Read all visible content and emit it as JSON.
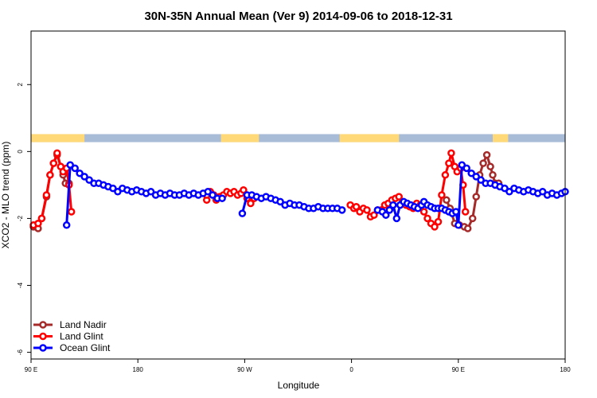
{
  "chart_data": {
    "type": "line",
    "title": "30N-35N Annual Mean (Ver 9)   2014-09-06 to 2018-12-31",
    "xlabel": "Longitude",
    "ylabel": "XCO2 - MLO trend (ppm)",
    "xlim": [
      90,
      540
    ],
    "ylim": [
      -6.2,
      3.6
    ],
    "x_ticks": [
      {
        "value": 90,
        "label": "90 E"
      },
      {
        "value": 180,
        "label": "180"
      },
      {
        "value": 270,
        "label": "90 W"
      },
      {
        "value": 360,
        "label": "0"
      },
      {
        "value": 450,
        "label": "90 E"
      },
      {
        "value": 540,
        "label": "180"
      }
    ],
    "y_ticks": [
      {
        "value": 2,
        "label": "2"
      },
      {
        "value": 0,
        "label": "0"
      },
      {
        "value": -2,
        "label": "-2"
      },
      {
        "value": -4,
        "label": "-4"
      },
      {
        "value": -6,
        "label": "-6"
      }
    ],
    "grid": false,
    "legend_position": "bottom-left",
    "land_ocean_strip": {
      "y_range": [
        0.28,
        0.52
      ],
      "ocean_color": "#a8bcd8",
      "land_color": "#ffd878",
      "land_segments": [
        [
          90,
          135
        ],
        [
          250,
          282
        ],
        [
          350,
          400
        ],
        [
          479,
          492
        ]
      ]
    },
    "series": [
      {
        "name": "Land Nadir",
        "color": "#a52a2a",
        "segments": [
          [
            [
              92,
              -2.25
            ],
            [
              96,
              -2.3
            ],
            [
              99,
              -2.0
            ],
            [
              103,
              -1.35
            ],
            [
              106,
              -0.7
            ],
            [
              109,
              -0.35
            ],
            [
              112,
              -0.1
            ],
            [
              115,
              -0.45
            ],
            [
              117,
              -0.7
            ],
            [
              119,
              -0.95
            ],
            [
              122,
              -0.95
            ]
          ],
          [
            [
              440,
              -1.45
            ],
            [
              443,
              -1.7
            ],
            [
              447,
              -2.15
            ],
            [
              451,
              -2.2
            ],
            [
              455,
              -2.25
            ],
            [
              458,
              -2.3
            ],
            [
              462,
              -2.0
            ],
            [
              465,
              -1.35
            ],
            [
              468,
              -0.7
            ],
            [
              471,
              -0.35
            ],
            [
              474,
              -0.1
            ],
            [
              477,
              -0.45
            ],
            [
              479,
              -0.7
            ],
            [
              481,
              -0.95
            ],
            [
              484,
              -0.95
            ]
          ]
        ]
      },
      {
        "name": "Land Glint",
        "color": "#ff0000",
        "segments": [
          [
            [
              92,
              -2.2
            ],
            [
              96,
              -2.15
            ],
            [
              99,
              -2.0
            ],
            [
              103,
              -1.3
            ],
            [
              106,
              -0.7
            ],
            [
              109,
              -0.35
            ],
            [
              112,
              -0.05
            ],
            [
              115,
              -0.45
            ],
            [
              117,
              -0.6
            ],
            [
              120,
              -0.5
            ],
            [
              122,
              -1.0
            ],
            [
              124,
              -1.8
            ]
          ],
          [
            [
              238,
              -1.45
            ],
            [
              238,
              -1.3
            ],
            [
              241,
              -1.2
            ],
            [
              244,
              -1.3
            ],
            [
              246,
              -1.45
            ],
            [
              249,
              -1.35
            ],
            [
              252,
              -1.3
            ],
            [
              255,
              -1.2
            ],
            [
              258,
              -1.25
            ],
            [
              261,
              -1.2
            ],
            [
              264,
              -1.3
            ],
            [
              267,
              -1.25
            ],
            [
              269,
              -1.15
            ],
            [
              272,
              -1.4
            ],
            [
              275,
              -1.55
            ],
            [
              278,
              -1.4
            ]
          ],
          [
            [
              359,
              -1.6
            ],
            [
              362,
              -1.7
            ],
            [
              364,
              -1.65
            ],
            [
              367,
              -1.8
            ],
            [
              370,
              -1.7
            ],
            [
              373,
              -1.75
            ],
            [
              376,
              -1.95
            ],
            [
              379,
              -1.9
            ],
            [
              382,
              -1.75
            ],
            [
              385,
              -1.75
            ],
            [
              388,
              -1.6
            ],
            [
              391,
              -1.55
            ],
            [
              394,
              -1.45
            ],
            [
              397,
              -1.4
            ],
            [
              400,
              -1.35
            ],
            [
              403,
              -1.5
            ],
            [
              406,
              -1.6
            ],
            [
              409,
              -1.65
            ],
            [
              412,
              -1.7
            ],
            [
              415,
              -1.55
            ],
            [
              418,
              -1.6
            ],
            [
              421,
              -1.8
            ],
            [
              424,
              -2.0
            ],
            [
              427,
              -2.15
            ],
            [
              430,
              -2.25
            ],
            [
              433,
              -2.1
            ],
            [
              436,
              -1.3
            ],
            [
              439,
              -0.7
            ],
            [
              442,
              -0.35
            ],
            [
              444,
              -0.05
            ],
            [
              447,
              -0.45
            ],
            [
              449,
              -0.6
            ],
            [
              452,
              -0.5
            ],
            [
              454,
              -1.0
            ],
            [
              456,
              -1.8
            ]
          ]
        ]
      },
      {
        "name": "Ocean Glint",
        "color": "#0000ff",
        "segments": [
          [
            [
              120,
              -2.2
            ],
            [
              123,
              -0.4
            ],
            [
              127,
              -0.5
            ],
            [
              131,
              -0.65
            ],
            [
              135,
              -0.75
            ],
            [
              139,
              -0.85
            ],
            [
              143,
              -0.95
            ],
            [
              147,
              -0.95
            ],
            [
              151,
              -1.0
            ],
            [
              155,
              -1.05
            ],
            [
              159,
              -1.1
            ],
            [
              163,
              -1.2
            ],
            [
              167,
              -1.1
            ],
            [
              171,
              -1.15
            ],
            [
              175,
              -1.2
            ],
            [
              179,
              -1.15
            ],
            [
              183,
              -1.2
            ],
            [
              187,
              -1.25
            ],
            [
              191,
              -1.2
            ],
            [
              195,
              -1.3
            ],
            [
              199,
              -1.25
            ],
            [
              203,
              -1.3
            ],
            [
              207,
              -1.25
            ],
            [
              211,
              -1.3
            ],
            [
              215,
              -1.3
            ],
            [
              219,
              -1.25
            ],
            [
              223,
              -1.3
            ],
            [
              227,
              -1.25
            ],
            [
              231,
              -1.3
            ],
            [
              235,
              -1.25
            ],
            [
              239,
              -1.2
            ],
            [
              243,
              -1.3
            ],
            [
              247,
              -1.4
            ],
            [
              251,
              -1.4
            ]
          ],
          [
            [
              268,
              -1.85
            ],
            [
              272,
              -1.3
            ],
            [
              276,
              -1.3
            ],
            [
              280,
              -1.35
            ],
            [
              284,
              -1.4
            ],
            [
              288,
              -1.35
            ],
            [
              292,
              -1.4
            ],
            [
              296,
              -1.45
            ],
            [
              300,
              -1.5
            ],
            [
              304,
              -1.6
            ],
            [
              308,
              -1.55
            ],
            [
              312,
              -1.6
            ],
            [
              316,
              -1.6
            ],
            [
              320,
              -1.65
            ],
            [
              324,
              -1.7
            ],
            [
              328,
              -1.7
            ],
            [
              332,
              -1.65
            ],
            [
              336,
              -1.7
            ],
            [
              340,
              -1.7
            ],
            [
              344,
              -1.7
            ],
            [
              348,
              -1.7
            ],
            [
              352,
              -1.75
            ]
          ],
          [
            [
              382,
              -1.75
            ],
            [
              386,
              -1.8
            ],
            [
              389,
              -1.9
            ],
            [
              392,
              -1.75
            ],
            [
              395,
              -1.6
            ],
            [
              398,
              -2.0
            ],
            [
              401,
              -1.6
            ],
            [
              404,
              -1.5
            ],
            [
              407,
              -1.55
            ],
            [
              410,
              -1.6
            ],
            [
              413,
              -1.65
            ],
            [
              416,
              -1.7
            ],
            [
              419,
              -1.6
            ],
            [
              421,
              -1.5
            ],
            [
              424,
              -1.6
            ],
            [
              427,
              -1.65
            ],
            [
              430,
              -1.7
            ],
            [
              433,
              -1.7
            ],
            [
              436,
              -1.7
            ],
            [
              439,
              -1.75
            ],
            [
              442,
              -1.8
            ],
            [
              445,
              -1.85
            ],
            [
              448,
              -1.8
            ],
            [
              450,
              -2.2
            ],
            [
              453,
              -0.4
            ],
            [
              457,
              -0.5
            ],
            [
              461,
              -0.65
            ],
            [
              465,
              -0.75
            ],
            [
              469,
              -0.85
            ],
            [
              473,
              -0.95
            ],
            [
              477,
              -0.95
            ],
            [
              481,
              -1.0
            ],
            [
              485,
              -1.05
            ],
            [
              489,
              -1.1
            ],
            [
              493,
              -1.2
            ],
            [
              497,
              -1.1
            ],
            [
              501,
              -1.15
            ],
            [
              505,
              -1.2
            ],
            [
              509,
              -1.15
            ],
            [
              513,
              -1.2
            ],
            [
              517,
              -1.25
            ],
            [
              521,
              -1.2
            ],
            [
              525,
              -1.3
            ],
            [
              529,
              -1.25
            ],
            [
              533,
              -1.3
            ],
            [
              537,
              -1.25
            ],
            [
              540,
              -1.2
            ]
          ]
        ]
      }
    ]
  }
}
